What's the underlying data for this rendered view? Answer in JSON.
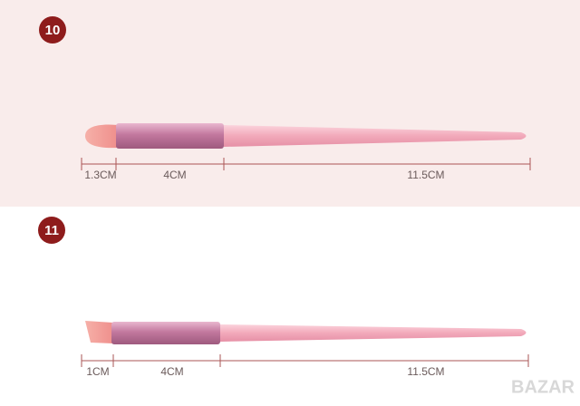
{
  "panels": [
    {
      "badge": "10",
      "dimensions": [
        "1.3CM",
        "4CM",
        "11.5CM"
      ]
    },
    {
      "badge": "11",
      "dimensions": [
        "1CM",
        "4CM",
        "11.5CM"
      ]
    }
  ],
  "watermark": "BAZAR"
}
